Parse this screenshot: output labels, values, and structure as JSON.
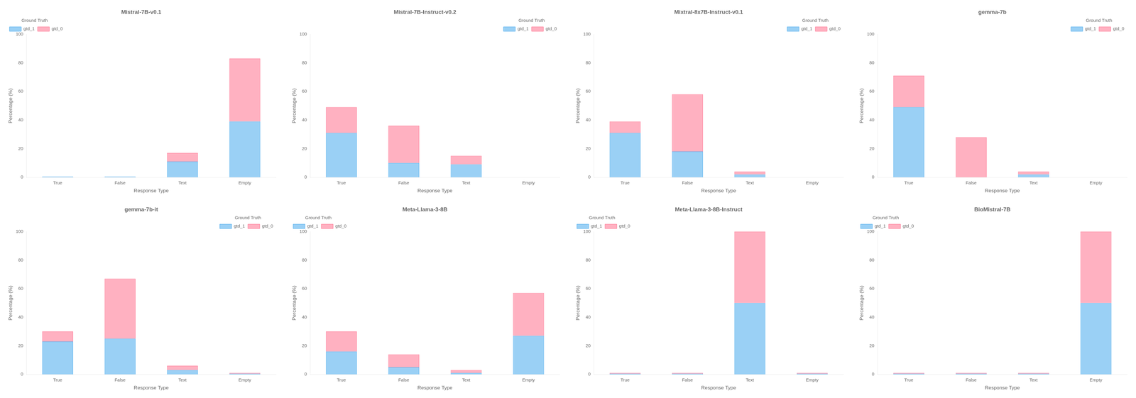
{
  "chart_data": [
    {
      "type": "bar",
      "title": "Mistral-7B-v0.1",
      "xlabel": "Response Type",
      "ylabel": "Percentage (%)",
      "categories": [
        "True",
        "False",
        "Text",
        "Empty"
      ],
      "series": [
        {
          "name": "gtd_1",
          "values": [
            0.5,
            0.5,
            11.0,
            39.0
          ]
        },
        {
          "name": "gtd_0",
          "values": [
            0.0,
            0.0,
            6.0,
            44.0
          ]
        }
      ],
      "stacked": true,
      "ylim": [
        0,
        100
      ],
      "yticks": [
        0,
        20,
        40,
        60,
        80,
        100
      ],
      "grid": false,
      "legend": "upper left",
      "legend_title": "Ground Truth"
    },
    {
      "type": "bar",
      "title": "Mistral-7B-Instruct-v0.2",
      "xlabel": "Response Type",
      "ylabel": "Percentage (%)",
      "categories": [
        "True",
        "False",
        "Text",
        "Empty"
      ],
      "series": [
        {
          "name": "gtd_1",
          "values": [
            31.0,
            10.0,
            9.0,
            0.0
          ]
        },
        {
          "name": "gtd_0",
          "values": [
            18.0,
            26.0,
            6.0,
            0.0
          ]
        }
      ],
      "stacked": true,
      "ylim": [
        0,
        100
      ],
      "yticks": [
        0,
        20,
        40,
        60,
        80,
        100
      ],
      "grid": false,
      "legend": "upper right",
      "legend_title": "Ground Truth"
    },
    {
      "type": "bar",
      "title": "Mixtral-8x7B-Instruct-v0.1",
      "xlabel": "Response Type",
      "ylabel": "Percentage (%)",
      "categories": [
        "True",
        "False",
        "Text",
        "Empty"
      ],
      "series": [
        {
          "name": "gtd_1",
          "values": [
            31.0,
            18.0,
            2.0,
            0.0
          ]
        },
        {
          "name": "gtd_0",
          "values": [
            8.0,
            40.0,
            2.0,
            0.0
          ]
        }
      ],
      "stacked": true,
      "ylim": [
        0,
        100
      ],
      "yticks": [
        0,
        20,
        40,
        60,
        80,
        100
      ],
      "grid": false,
      "legend": "upper right",
      "legend_title": "Ground Truth"
    },
    {
      "type": "bar",
      "title": "gemma-7b",
      "xlabel": "Response Type",
      "ylabel": "Percentage (%)",
      "categories": [
        "True",
        "False",
        "Text",
        "Empty"
      ],
      "series": [
        {
          "name": "gtd_1",
          "values": [
            49.0,
            0.0,
            2.0,
            0.0
          ]
        },
        {
          "name": "gtd_0",
          "values": [
            22.0,
            28.0,
            2.0,
            0.0
          ]
        }
      ],
      "stacked": true,
      "ylim": [
        0,
        100
      ],
      "yticks": [
        0,
        20,
        40,
        60,
        80,
        100
      ],
      "grid": false,
      "legend": "upper right",
      "legend_title": "Ground Truth"
    },
    {
      "type": "bar",
      "title": "gemma-7b-it",
      "xlabel": "Response Type",
      "ylabel": "Percentage (%)",
      "categories": [
        "True",
        "False",
        "Text",
        "Empty"
      ],
      "series": [
        {
          "name": "gtd_1",
          "values": [
            23.0,
            25.0,
            3.0,
            0.5
          ]
        },
        {
          "name": "gtd_0",
          "values": [
            7.0,
            42.0,
            3.0,
            0.5
          ]
        }
      ],
      "stacked": true,
      "ylim": [
        0,
        100
      ],
      "yticks": [
        0,
        20,
        40,
        60,
        80,
        100
      ],
      "grid": false,
      "legend": "upper right",
      "legend_title": "Ground Truth"
    },
    {
      "type": "bar",
      "title": "Meta-Llama-3-8B",
      "xlabel": "Response Type",
      "ylabel": "Percentage (%)",
      "categories": [
        "True",
        "False",
        "Text",
        "Empty"
      ],
      "series": [
        {
          "name": "gtd_1",
          "values": [
            16.0,
            5.0,
            1.0,
            27.0
          ]
        },
        {
          "name": "gtd_0",
          "values": [
            14.0,
            9.0,
            2.0,
            30.0
          ]
        }
      ],
      "stacked": true,
      "ylim": [
        0,
        100
      ],
      "yticks": [
        0,
        20,
        40,
        60,
        80,
        100
      ],
      "grid": false,
      "legend": "upper left",
      "legend_title": "Ground Truth"
    },
    {
      "type": "bar",
      "title": "Meta-Llama-3-8B-Instruct",
      "xlabel": "Response Type",
      "ylabel": "Percentage (%)",
      "categories": [
        "True",
        "False",
        "Text",
        "Empty"
      ],
      "series": [
        {
          "name": "gtd_1",
          "values": [
            0.5,
            0.5,
            50.0,
            0.5
          ]
        },
        {
          "name": "gtd_0",
          "values": [
            0.5,
            0.5,
            50.0,
            0.5
          ]
        }
      ],
      "stacked": true,
      "ylim": [
        0,
        100
      ],
      "yticks": [
        0,
        20,
        40,
        60,
        80,
        100
      ],
      "grid": false,
      "legend": "upper left",
      "legend_title": "Ground Truth"
    },
    {
      "type": "bar",
      "title": "BioMistral-7B",
      "xlabel": "Response Type",
      "ylabel": "Percentage (%)",
      "categories": [
        "True",
        "False",
        "Text",
        "Empty"
      ],
      "series": [
        {
          "name": "gtd_1",
          "values": [
            0.5,
            0.5,
            0.5,
            50.0
          ]
        },
        {
          "name": "gtd_0",
          "values": [
            0.5,
            0.5,
            0.5,
            50.0
          ]
        }
      ],
      "stacked": true,
      "ylim": [
        0,
        100
      ],
      "yticks": [
        0,
        20,
        40,
        60,
        80,
        100
      ],
      "grid": false,
      "legend": "upper left",
      "legend_title": "Ground Truth"
    }
  ]
}
